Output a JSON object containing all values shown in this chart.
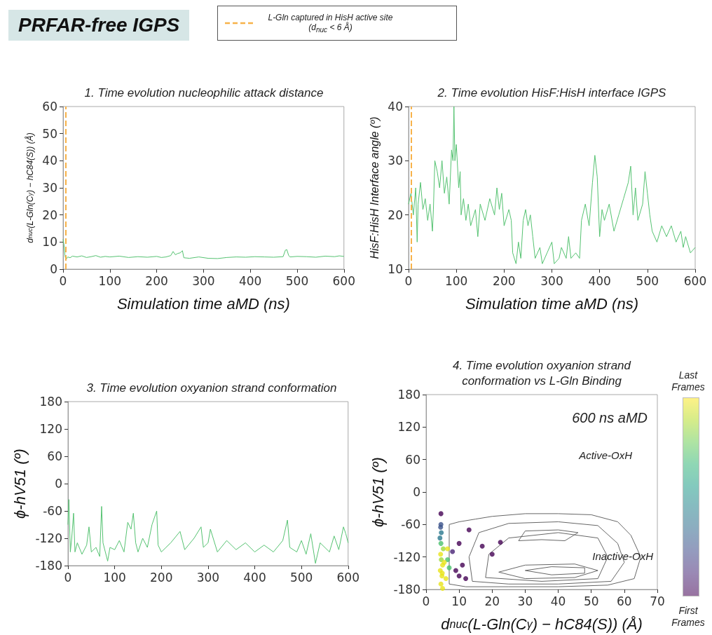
{
  "chart_data": [
    {
      "type": "line",
      "title": "1. Time evolution nucleophilic attack distance",
      "xlabel": "Simulation time aMD (ns)",
      "ylabel": "d$_{nuc}$(L-Gln(C$_{γ}$) − hC84(S)) (Å)",
      "annotations": [
        "PRFAR-free IGPS"
      ],
      "marker": "none",
      "xlim": [
        0,
        600
      ],
      "xticks": [
        0,
        100,
        200,
        300,
        400,
        500,
        600
      ],
      "ylim": [
        0,
        60
      ],
      "yticks": [
        0,
        10,
        20,
        30,
        40,
        50,
        60
      ],
      "ref_lines": [
        {
          "axis": "x",
          "value": 5,
          "label": "L-Gln captured in HisH active site (d$_{nuc}$ < 6 Å)",
          "color": "#f7b24a",
          "line_style": "dashed"
        }
      ],
      "series": [
        {
          "color": "#55c271",
          "x": [
            0,
            2,
            4,
            6,
            10,
            15,
            20,
            30,
            40,
            50,
            60,
            70,
            80,
            90,
            100,
            120,
            140,
            160,
            180,
            200,
            210,
            220,
            230,
            235,
            240,
            245,
            250,
            255,
            258,
            270,
            290,
            310,
            330,
            350,
            370,
            390,
            410,
            430,
            450,
            470,
            475,
            478,
            482,
            485,
            500,
            520,
            540,
            560,
            580,
            590,
            600
          ],
          "values": [
            11,
            9,
            5,
            3.5,
            4.5,
            4.2,
            4.8,
            4.5,
            4.9,
            4.3,
            4.6,
            5.0,
            4.4,
            4.7,
            4.5,
            4.8,
            4.3,
            4.6,
            4.4,
            4.7,
            4.3,
            4.5,
            5.0,
            6.5,
            5.3,
            5.8,
            6.0,
            6.8,
            4.2,
            4.0,
            4.5,
            4.0,
            3.9,
            4.3,
            4.5,
            4.4,
            4.6,
            4.5,
            4.4,
            4.6,
            7.0,
            7.2,
            5.0,
            4.5,
            4.7,
            4.6,
            4.4,
            4.8,
            4.6,
            4.9,
            4.7
          ]
        }
      ]
    },
    {
      "type": "line",
      "title": "2. Time evolution HisF:HisH interface IGPS",
      "xlabel": "Simulation time aMD (ns)",
      "ylabel": "HisF:HisH Interface angle (º)",
      "marker": "none",
      "xlim": [
        0,
        600
      ],
      "xticks": [
        0,
        100,
        200,
        300,
        400,
        500,
        600
      ],
      "ylim": [
        10,
        40
      ],
      "yticks": [
        10,
        20,
        30,
        40
      ],
      "ref_lines": [
        {
          "axis": "x",
          "value": 5,
          "color": "#f7b24a",
          "line_style": "dashed"
        }
      ],
      "series": [
        {
          "color": "#55c271",
          "x": [
            0,
            5,
            10,
            15,
            18,
            20,
            25,
            30,
            35,
            40,
            45,
            50,
            52,
            55,
            60,
            65,
            70,
            75,
            80,
            85,
            90,
            93,
            95,
            97,
            100,
            105,
            108,
            110,
            115,
            120,
            125,
            130,
            140,
            145,
            150,
            160,
            170,
            180,
            185,
            190,
            195,
            200,
            210,
            215,
            218,
            225,
            230,
            235,
            240,
            245,
            250,
            255,
            260,
            265,
            275,
            280,
            290,
            300,
            305,
            315,
            320,
            330,
            335,
            340,
            350,
            358,
            362,
            370,
            378,
            385,
            390,
            395,
            400,
            405,
            410,
            420,
            430,
            440,
            450,
            460,
            465,
            470,
            475,
            480,
            490,
            495,
            500,
            505,
            510,
            520,
            530,
            540,
            550,
            560,
            570,
            575,
            580,
            590,
            600
          ],
          "values": [
            22,
            24,
            20,
            25,
            15,
            22,
            26,
            21,
            23,
            19,
            22,
            17,
            21,
            30,
            28,
            25,
            30,
            24,
            27,
            22,
            32,
            30,
            40,
            30,
            33,
            25,
            28,
            20,
            23,
            19,
            22,
            18,
            21,
            16,
            22,
            19,
            23,
            20,
            25,
            21,
            24,
            18,
            21,
            19,
            13,
            11,
            15,
            12,
            19,
            21,
            18,
            20,
            16,
            12,
            14,
            11,
            13,
            15,
            11,
            12,
            14,
            12,
            16,
            12,
            13,
            12,
            19,
            22,
            18,
            26,
            31,
            27,
            16,
            21,
            19,
            22,
            17,
            20,
            23,
            26,
            29,
            20,
            25,
            19,
            22,
            28,
            24,
            20,
            17,
            15,
            18,
            16,
            18,
            15,
            17,
            14,
            16,
            13,
            14
          ]
        }
      ]
    },
    {
      "type": "line",
      "title": "3. Time evolution oxyanion strand conformation",
      "ylabel": "ϕ-hV51 (º)",
      "marker": "none",
      "xlim": [
        0,
        600
      ],
      "xticks": [
        0,
        100,
        200,
        300,
        400,
        500,
        600
      ],
      "ylim": [
        -180,
        180
      ],
      "yticks": [
        -180,
        -120,
        -60,
        0,
        60,
        120,
        180
      ],
      "series": [
        {
          "color": "#55c271",
          "x": [
            0,
            2,
            5,
            8,
            12,
            15,
            20,
            30,
            40,
            45,
            50,
            60,
            68,
            72,
            75,
            85,
            90,
            100,
            110,
            120,
            128,
            135,
            140,
            145,
            150,
            160,
            170,
            180,
            190,
            193,
            200,
            210,
            220,
            240,
            250,
            270,
            285,
            290,
            300,
            305,
            320,
            340,
            360,
            380,
            400,
            420,
            440,
            460,
            470,
            475,
            490,
            500,
            510,
            520,
            530,
            540,
            560,
            570,
            580,
            590,
            595,
            600
          ],
          "values": [
            -90,
            -35,
            -150,
            -120,
            -65,
            -150,
            -130,
            -155,
            -135,
            -95,
            -150,
            -140,
            -160,
            -50,
            -130,
            -170,
            -140,
            -145,
            -125,
            -150,
            -85,
            -100,
            -65,
            -130,
            -150,
            -120,
            -140,
            -90,
            -60,
            -135,
            -150,
            -140,
            -130,
            -105,
            -145,
            -120,
            -95,
            -140,
            -130,
            -100,
            -150,
            -125,
            -145,
            -130,
            -150,
            -135,
            -150,
            -125,
            -80,
            -140,
            -150,
            -125,
            -155,
            -110,
            -175,
            -130,
            -150,
            -115,
            -145,
            -95,
            -110,
            -130
          ]
        }
      ]
    },
    {
      "type": "scatter",
      "title": "4. Time evolution oxyanion strand conformation vs L-Gln Binding",
      "xlabel": "d$_{nuc}$(L-Gln(C$_{γ}$) − hC84(S)) (Å)",
      "ylabel": "ϕ-hV51 (º)",
      "marker": "circle",
      "xlim": [
        0,
        70
      ],
      "xticks": [
        0,
        10,
        20,
        30,
        40,
        50,
        60,
        70
      ],
      "ylim": [
        -180,
        180
      ],
      "yticks": [
        -180,
        -120,
        -60,
        0,
        60,
        120,
        180
      ],
      "annotations": [
        "600 ns aMD",
        "Active-OxH",
        "Inactive-OxH",
        "Last Frames",
        "First Frames"
      ],
      "series": [
        {
          "x": [
            4.5,
            4.8,
            4.3,
            5,
            4.6,
            4.4,
            5.2,
            4.5,
            4.2,
            4.6,
            4.4,
            4.5,
            6.5,
            7,
            6,
            5,
            6.5,
            10,
            11,
            10,
            9,
            12,
            17,
            20,
            22.5,
            13,
            8,
            4.5,
            4.9,
            5.5
          ],
          "values": [
            -170,
            -155,
            -145,
            -135,
            -125,
            -115,
            -105,
            -95,
            -85,
            -75,
            -65,
            -40,
            -125,
            -140,
            -160,
            -178,
            -105,
            -95,
            -135,
            -155,
            -145,
            -160,
            -100,
            -115,
            -93,
            -70,
            -110,
            -60,
            -150,
            -130
          ],
          "colors": [
            "#e8e419",
            "#e8e419",
            "#e8e419",
            "#e8e419",
            "#9fda3a",
            "#e8e419",
            "#9fda3a",
            "#4ac16d",
            "#2a788e",
            "#2a788e",
            "#3b528b",
            "#440154",
            "#4ac16d",
            "#4ac16d",
            "#e8e419",
            "#e8e419",
            "#e8e419",
            "#440154",
            "#440154",
            "#440154",
            "#440154",
            "#440154",
            "#440154",
            "#440154",
            "#440154",
            "#440154",
            "#482475",
            "#3b528b",
            "#e8e419",
            "#e8e419"
          ]
        },
        {
          "type": "line",
          "marker": "none",
          "color": "#666666",
          "x": [
            7,
            7,
            10,
            15,
            20,
            30,
            40,
            50,
            58,
            62,
            65
          ],
          "values": [
            -170,
            -60,
            -55,
            -50,
            -45,
            -40,
            -40,
            -42,
            -55,
            -80,
            -120
          ]
        },
        {
          "type": "line",
          "marker": "none",
          "color": "#666666",
          "x": [
            7,
            12,
            25,
            40,
            55,
            63,
            65
          ],
          "values": [
            -170,
            -175,
            -175,
            -175,
            -172,
            -160,
            -120
          ]
        },
        {
          "type": "line",
          "marker": "none",
          "color": "#666666",
          "x": [
            13,
            16,
            25,
            40,
            52,
            58,
            60
          ],
          "values": [
            -120,
            -75,
            -58,
            -55,
            -62,
            -95,
            -130
          ]
        },
        {
          "type": "line",
          "marker": "none",
          "color": "#666666",
          "x": [
            13,
            14,
            25,
            40,
            56,
            60
          ],
          "values": [
            -120,
            -165,
            -170,
            -170,
            -165,
            -130
          ]
        },
        {
          "type": "line",
          "marker": "none",
          "color": "#666666",
          "x": [
            18,
            19,
            25,
            40,
            52,
            55
          ],
          "values": [
            -158,
            -115,
            -85,
            -75,
            -85,
            -120
          ]
        },
        {
          "type": "line",
          "marker": "none",
          "color": "#666666",
          "x": [
            18,
            35,
            52,
            55
          ],
          "values": [
            -158,
            -165,
            -160,
            -120
          ]
        },
        {
          "type": "line",
          "marker": "none",
          "color": "#666666",
          "x": [
            28,
            30,
            40,
            46
          ],
          "values": [
            -90,
            -72,
            -70,
            -75
          ]
        },
        {
          "type": "line",
          "marker": "none",
          "color": "#666666",
          "x": [
            28,
            35,
            42,
            46
          ],
          "values": [
            -90,
            -88,
            -90,
            -75
          ]
        },
        {
          "type": "line",
          "marker": "none",
          "color": "#666666",
          "x": [
            22,
            30,
            45,
            52
          ],
          "values": [
            -148,
            -135,
            -133,
            -145
          ]
        },
        {
          "type": "line",
          "marker": "none",
          "color": "#666666",
          "x": [
            22,
            30,
            45,
            52
          ],
          "values": [
            -148,
            -160,
            -158,
            -145
          ]
        },
        {
          "type": "line",
          "marker": "none",
          "color": "#666666",
          "x": [
            30,
            38,
            48,
            48
          ],
          "values": [
            -145,
            -138,
            -140,
            -150
          ]
        },
        {
          "type": "line",
          "marker": "none",
          "color": "#666666",
          "x": [
            30,
            38,
            48
          ],
          "values": [
            -145,
            -153,
            -150
          ]
        }
      ]
    }
  ]
}
